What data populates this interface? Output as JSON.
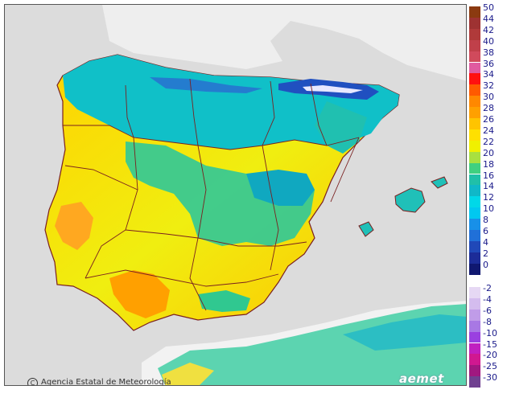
{
  "credit": "Agencia Estatal de Meteorología",
  "credit_symbol": "C",
  "logo": "aemet",
  "colors": {
    "sea": "#dcdcdc",
    "france": "#eeeeee",
    "africa": "#f2f2f2",
    "borders": "#7a2020"
  },
  "legend_warm": [
    {
      "label": "50",
      "color": "#8b3a10"
    },
    {
      "label": "44",
      "color": "#9e3232"
    },
    {
      "label": "42",
      "color": "#b03a3a"
    },
    {
      "label": "40",
      "color": "#c0404a"
    },
    {
      "label": "38",
      "color": "#d04a5c"
    },
    {
      "label": "36",
      "color": "#e05aa0"
    },
    {
      "label": "34",
      "color": "#ff1010"
    },
    {
      "label": "32",
      "color": "#ff5a00"
    },
    {
      "label": "30",
      "color": "#ff8800"
    },
    {
      "label": "28",
      "color": "#ffa000"
    },
    {
      "label": "26",
      "color": "#ffc400"
    },
    {
      "label": "24",
      "color": "#ffe000"
    },
    {
      "label": "22",
      "color": "#f0f000"
    },
    {
      "label": "20",
      "color": "#a8e040"
    },
    {
      "label": "18",
      "color": "#40d080"
    },
    {
      "label": "16",
      "color": "#20c0a8"
    },
    {
      "label": "14",
      "color": "#10b8c8"
    },
    {
      "label": "12",
      "color": "#00d8e8"
    },
    {
      "label": "10",
      "color": "#00c8f0"
    },
    {
      "label": "8",
      "color": "#1890e8"
    },
    {
      "label": "6",
      "color": "#2070d8"
    },
    {
      "label": "4",
      "color": "#2048b8"
    },
    {
      "label": "2",
      "color": "#1c2c98"
    },
    {
      "label": "0",
      "color": "#101870"
    }
  ],
  "legend_cold": [
    {
      "label": "-2",
      "color": "#e6d8f4"
    },
    {
      "label": "-4",
      "color": "#d4bcee"
    },
    {
      "label": "-6",
      "color": "#c09ce8"
    },
    {
      "label": "-8",
      "color": "#a878e4"
    },
    {
      "label": "-10",
      "color": "#9a40e0"
    },
    {
      "label": "-15",
      "color": "#c020c0"
    },
    {
      "label": "-20",
      "color": "#d01890"
    },
    {
      "label": "-25",
      "color": "#a01880"
    },
    {
      "label": "-30",
      "color": "#704090"
    }
  ]
}
